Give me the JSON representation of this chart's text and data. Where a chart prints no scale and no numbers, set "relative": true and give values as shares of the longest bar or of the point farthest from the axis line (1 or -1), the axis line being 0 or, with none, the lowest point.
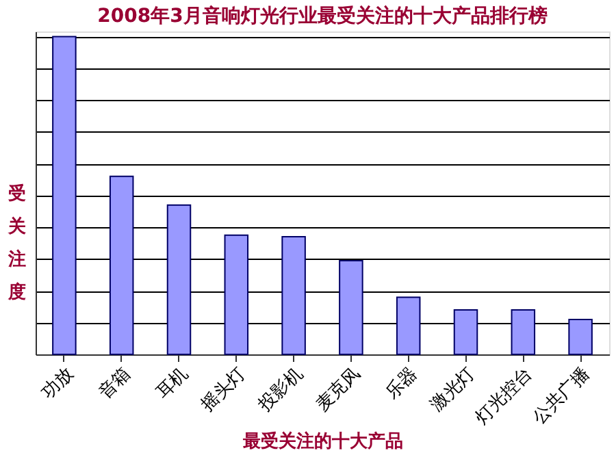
{
  "chart_data": {
    "type": "bar",
    "title": "2008年3月音响灯光行业最受关注的十大产品排行榜",
    "xlabel": "最受关注的十大产品",
    "ylabel": "受关注度",
    "categories": [
      "功放",
      "音箱",
      "耳机",
      "摇头灯",
      "投影机",
      "麦克风",
      "乐器",
      "激光灯",
      "灯光控台",
      "公共广播"
    ],
    "values": [
      1,
      0.56,
      0.47,
      0.375,
      0.37,
      0.295,
      0.18,
      0.14,
      0.14,
      0.11
    ],
    "color": "#9999ff",
    "relative": true,
    "grid": "y"
  }
}
